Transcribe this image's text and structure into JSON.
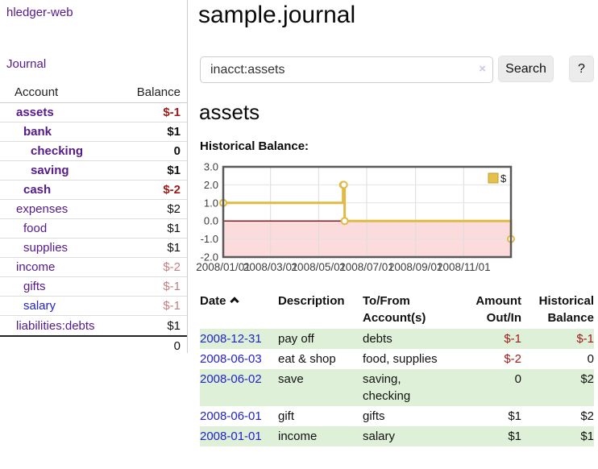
{
  "app": {
    "brand": "hledger-web",
    "nav_journal": "Journal"
  },
  "colors": {
    "link_purple": "#551a8b",
    "link_blue": "#2222cc",
    "negative_bold": "#9e1a1a",
    "negative_soft": "#c07f7f",
    "row_green": "#dff0d8",
    "chart_gold": "#e0ba45",
    "chart_pink": "#fbdbdb",
    "zero_line": "#8b1a1a"
  },
  "sidebar": {
    "header": {
      "account": "Account",
      "balance": "Balance"
    },
    "accounts": [
      {
        "name": "assets",
        "depth": 0,
        "bold": true,
        "balance": "$-1",
        "neg": true,
        "blue": false
      },
      {
        "name": "bank",
        "depth": 1,
        "bold": true,
        "balance": "$1",
        "neg": false,
        "blue": false
      },
      {
        "name": "checking",
        "depth": 2,
        "bold": true,
        "balance": "0",
        "neg": false,
        "blue": false
      },
      {
        "name": "saving",
        "depth": 2,
        "bold": true,
        "balance": "$1",
        "neg": false,
        "blue": false
      },
      {
        "name": "cash",
        "depth": 1,
        "bold": true,
        "balance": "$-2",
        "neg": true,
        "blue": false
      },
      {
        "name": "expenses",
        "depth": 0,
        "bold": false,
        "balance": "$2",
        "neg": false,
        "blue": false
      },
      {
        "name": "food",
        "depth": 1,
        "bold": false,
        "balance": "$1",
        "neg": false,
        "blue": false
      },
      {
        "name": "supplies",
        "depth": 1,
        "bold": false,
        "balance": "$1",
        "neg": false,
        "blue": false
      },
      {
        "name": "income",
        "depth": 0,
        "bold": false,
        "balance": "$-2",
        "neg": true,
        "blue": false
      },
      {
        "name": "gifts",
        "depth": 1,
        "bold": false,
        "balance": "$-1",
        "neg": true,
        "blue": false
      },
      {
        "name": "salary",
        "depth": 1,
        "bold": false,
        "balance": "$-1",
        "neg": true,
        "blue": true
      },
      {
        "name": "liabilities:debts",
        "depth": 0,
        "bold": false,
        "balance": "$1",
        "neg": false,
        "blue": false
      }
    ],
    "total": "0"
  },
  "header": {
    "title": "sample.journal"
  },
  "search": {
    "value": "inacct:assets",
    "clear_icon": "×",
    "button_label": "Search",
    "help_label": "?"
  },
  "account_page": {
    "heading": "assets",
    "chart_title": "Historical Balance:"
  },
  "chart_data": {
    "type": "line",
    "step": true,
    "title": "Historical Balance",
    "series": [
      {
        "name": "$",
        "color": "#e0ba45",
        "points": [
          [
            "2008-01-01",
            1
          ],
          [
            "2008-06-01",
            2
          ],
          [
            "2008-06-02",
            2
          ],
          [
            "2008-06-03",
            0
          ],
          [
            "2008-12-31",
            -1
          ]
        ]
      }
    ],
    "x_ticks": [
      "2008/01/01",
      "2008/03/01",
      "2008/05/01",
      "2008/07/01",
      "2008/09/01",
      "2008/11/01"
    ],
    "y_ticks": [
      "3.0",
      "2.0",
      "1.0",
      "0.0",
      "-1.0",
      "-2.0"
    ],
    "ylim": [
      -2,
      3
    ],
    "x_range": [
      "2008-01-01",
      "2008-12-31"
    ],
    "grid": true,
    "legend": {
      "label": "$",
      "position": "top-right",
      "swatch_color": "#e6c04a"
    },
    "negative_region_color": "#fbdbdb",
    "zero_line_color": "#8b1a1a"
  },
  "register": {
    "sort": {
      "column": "Date",
      "direction": "ascending"
    },
    "headers": [
      {
        "label": "Date"
      },
      {
        "label": "Description"
      },
      {
        "label": "To/From Account(s)"
      },
      {
        "label": "Amount Out/In"
      },
      {
        "label": "Historical Balance"
      }
    ],
    "rows": [
      {
        "date": "2008-12-31",
        "description": "pay off",
        "accounts": "debts",
        "amount": "$-1",
        "amount_neg": true,
        "balance": "$-1",
        "balance_neg": true
      },
      {
        "date": "2008-06-03",
        "description": "eat & shop",
        "accounts": "food, supplies",
        "amount": "$-2",
        "amount_neg": true,
        "balance": "0",
        "balance_neg": false
      },
      {
        "date": "2008-06-02",
        "description": "save",
        "accounts": "saving, checking",
        "amount": "0",
        "amount_neg": false,
        "balance": "$2",
        "balance_neg": false
      },
      {
        "date": "2008-06-01",
        "description": "gift",
        "accounts": "gifts",
        "amount": "$1",
        "amount_neg": false,
        "balance": "$2",
        "balance_neg": false
      },
      {
        "date": "2008-01-01",
        "description": "income",
        "accounts": "salary",
        "amount": "$1",
        "amount_neg": false,
        "balance": "$1",
        "balance_neg": false
      }
    ]
  }
}
